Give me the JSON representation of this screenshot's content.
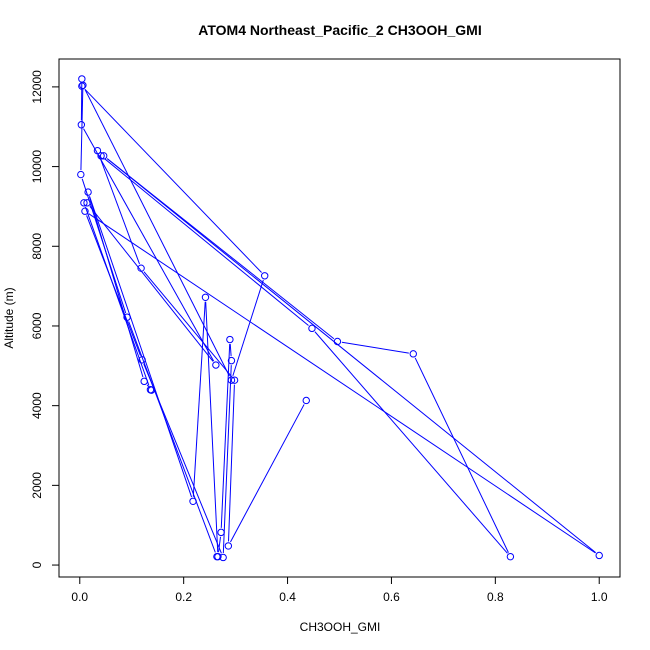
{
  "chart_data": {
    "type": "line",
    "title": "ATOM4 Northeast_Pacific_2 CH3OOH_GMI",
    "xlabel": "CH3OOH_GMI",
    "ylabel": "Altitude (m)",
    "xlim": [
      -0.04,
      1.04
    ],
    "ylim": [
      -300,
      12700
    ],
    "xticks": [
      0.0,
      0.2,
      0.4,
      0.6,
      0.8,
      1.0
    ],
    "xtick_labels": [
      "0.0",
      "0.2",
      "0.4",
      "0.6",
      "0.8",
      "1.0"
    ],
    "yticks": [
      0,
      2000,
      4000,
      6000,
      8000,
      10000,
      12000
    ],
    "ytick_labels": [
      "0",
      "2000",
      "4000",
      "6000",
      "8000",
      "10000",
      "12000"
    ],
    "grid": false,
    "legend": "none",
    "series": [
      {
        "color": "#0000ff",
        "marker": "open-circle",
        "points": [
          [
            0.436,
            4130
          ],
          [
            0.286,
            480
          ],
          [
            0.298,
            4640
          ],
          [
            0.118,
            7450
          ],
          [
            0.034,
            10400
          ],
          [
            0.041,
            10270
          ],
          [
            0.447,
            5940
          ],
          [
            0.829,
            210
          ],
          [
            0.642,
            5300
          ],
          [
            0.496,
            5610
          ],
          [
            0.046,
            10270
          ],
          [
            1.0,
            240
          ],
          [
            0.01,
            8880
          ],
          [
            0.12,
            5150
          ],
          [
            0.276,
            190
          ],
          [
            0.292,
            5130
          ],
          [
            0.289,
            5660
          ],
          [
            0.272,
            820
          ],
          [
            0.266,
            210
          ],
          [
            0.242,
            6720
          ],
          [
            0.218,
            1600
          ],
          [
            0.016,
            9360
          ],
          [
            0.124,
            4610
          ],
          [
            0.138,
            4390
          ],
          [
            0.136,
            4400
          ],
          [
            0.008,
            9090
          ],
          [
            0.014,
            9090
          ],
          [
            0.262,
            5020
          ],
          [
            0.003,
            11050
          ],
          [
            0.004,
            12200
          ],
          [
            0.004,
            12020
          ],
          [
            0.356,
            7260
          ],
          [
            0.292,
            4640
          ],
          [
            0.006,
            12040
          ],
          [
            0.002,
            9800
          ],
          [
            0.091,
            6220
          ],
          [
            0.264,
            210
          ]
        ]
      }
    ]
  }
}
